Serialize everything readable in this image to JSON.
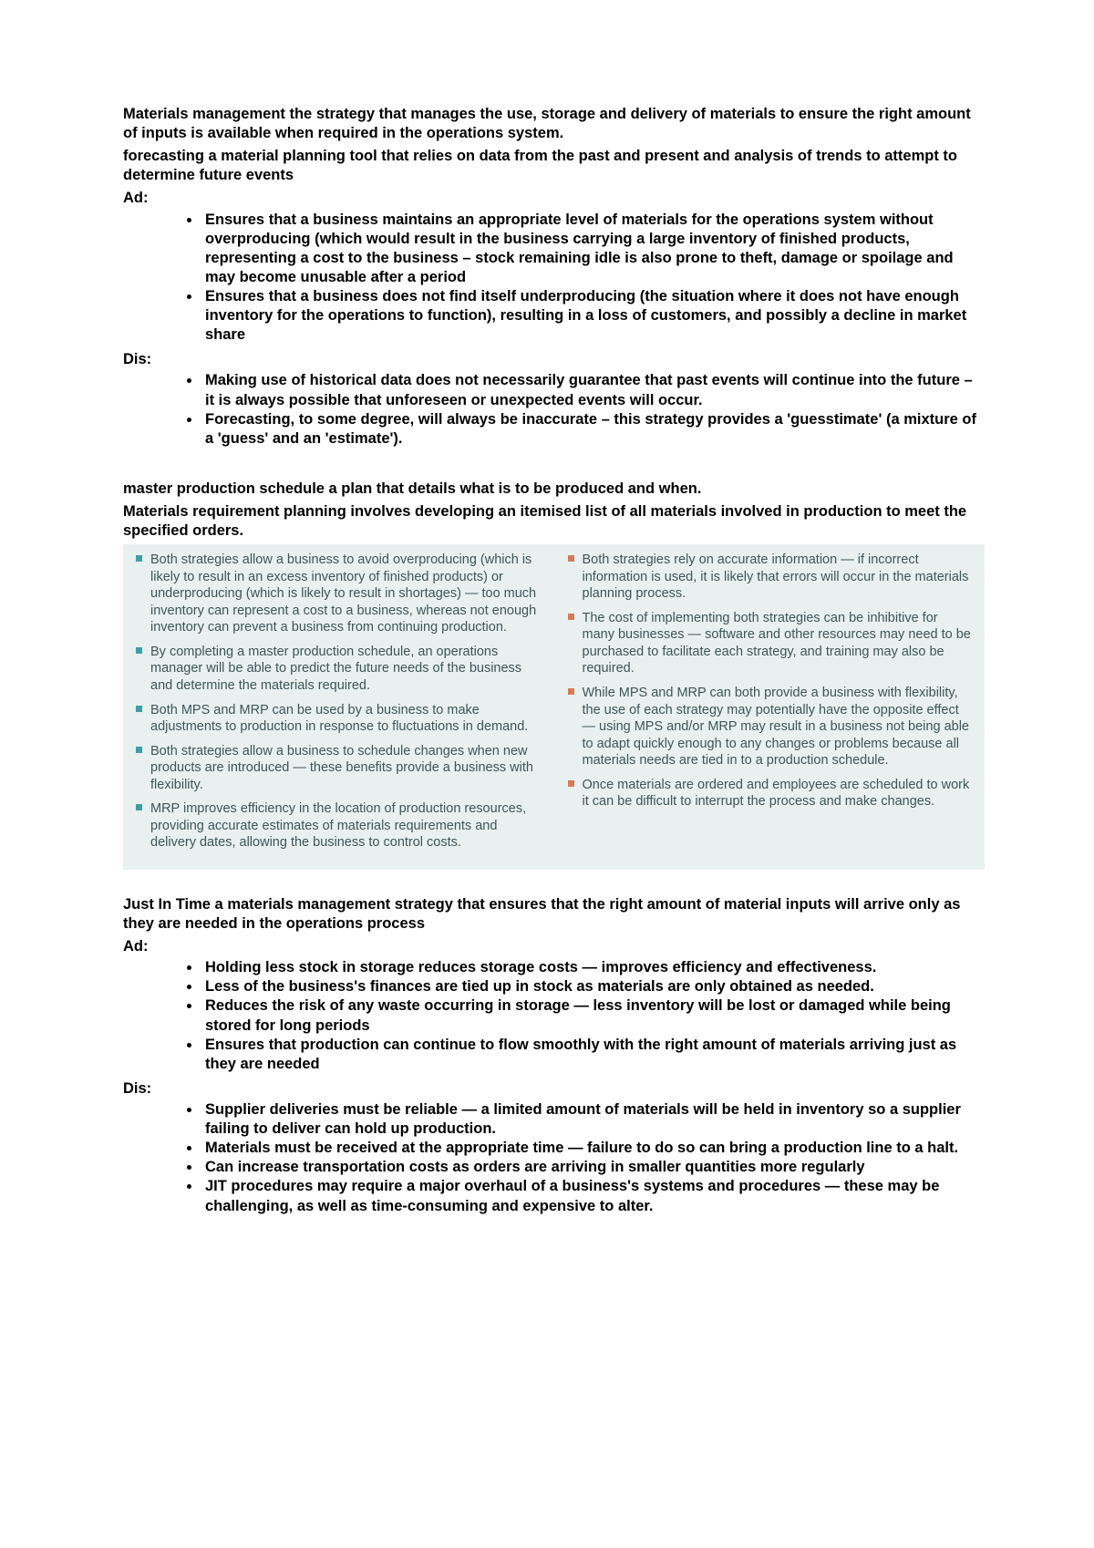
{
  "colors": {
    "text": "#000000",
    "box_bg": "#e9f0f0",
    "box_text": "#3f5558",
    "bullet_pos": "#3aa0a3",
    "bullet_neg": "#d67a52"
  },
  "section1": {
    "heading1": "Materials management the strategy that manages the use, storage and delivery of materials to ensure the right amount of inputs is available when required in the operations system.",
    "heading2": "forecasting a material planning tool that relies on data from the past and present and analysis of trends to attempt to determine future events",
    "ad_label": "Ad:",
    "ad_items": [
      "Ensures that a business maintains an appropriate level of materials for the operations system without overproducing (which would result in the business carrying a large inventory of finished products, representing a cost to the business – stock remaining idle is also prone to theft, damage or spoilage and may become unusable after a period",
      "Ensures that a business does not find itself underproducing (the situation where it does not have enough inventory for the operations to function), resulting in a loss of customers, and possibly a decline in market share"
    ],
    "dis_label": "Dis:",
    "dis_items": [
      "Making use of historical data does not necessarily guarantee that past events will continue into the future – it is always possible that unforeseen or unexpected events will occur.",
      "Forecasting, to some degree, will always be inaccurate – this strategy provides a 'guesstimate' (a mixture of a 'guess' and an 'estimate')."
    ]
  },
  "section2": {
    "heading1": "master production schedule a plan that details what is to be produced and when.",
    "heading2": "Materials requirement planning involves developing an itemised list of all materials involved in production to meet the specified orders.",
    "pros": [
      "Both strategies allow a business to avoid overproducing (which is likely to result in an excess inventory of finished products) or underproducing (which is likely to result in shortages) — too much inventory can represent a cost to a business, whereas not enough inventory can prevent a business from continuing production.",
      "By completing a master production schedule, an operations manager will be able to predict the future needs of the business and determine the materials required.",
      "Both MPS and MRP can be used by a business to make adjustments to production in response to fluctuations in demand.",
      "Both strategies allow a business to schedule changes when new products are introduced — these benefits provide a business with flexibility.",
      "MRP improves efficiency in the location of production resources, providing accurate estimates of materials requirements and delivery dates, allowing the business to control costs."
    ],
    "cons": [
      "Both strategies rely on accurate information — if incorrect information is used, it is likely that errors will occur in the materials planning process.",
      "The cost of implementing both strategies can be inhibitive for many businesses — software and other resources may need to be purchased to facilitate each strategy, and training may also be required.",
      "While MPS and MRP can both provide a business with flexibility, the use of each strategy may potentially have the opposite effect — using MPS and/or MRP may result in a business not being able to adapt quickly enough to any changes or problems because all materials needs are tied in to a production schedule.",
      "Once materials are ordered and employees are scheduled to work it can be difficult to interrupt the process and make changes."
    ]
  },
  "section3": {
    "heading": "Just In Time a materials management strategy that ensures that the right amount of material inputs will arrive only as they are needed in the operations process",
    "ad_label": "Ad:",
    "ad_items": [
      "Holding less stock in storage reduces storage costs — improves efficiency and effectiveness.",
      "Less of the business's finances are tied up in stock as materials are only obtained as needed.",
      "Reduces the risk of any waste occurring in storage — less inventory will be lost or damaged while being stored for long periods",
      "Ensures that production can continue to flow smoothly with the right amount of materials arriving just as they are needed"
    ],
    "dis_label": "Dis:",
    "dis_items": [
      "Supplier deliveries must be reliable — a limited amount of materials will be held in inventory so a supplier failing to deliver can hold up production.",
      "Materials must be received at the appropriate time — failure to do so can bring a production line to a halt.",
      "Can increase transportation costs as orders are arriving in smaller quantities more regularly",
      "JIT procedures may require a major overhaul of a business's systems and procedures — these may be challenging, as well as time-consuming and expensive to alter."
    ]
  }
}
